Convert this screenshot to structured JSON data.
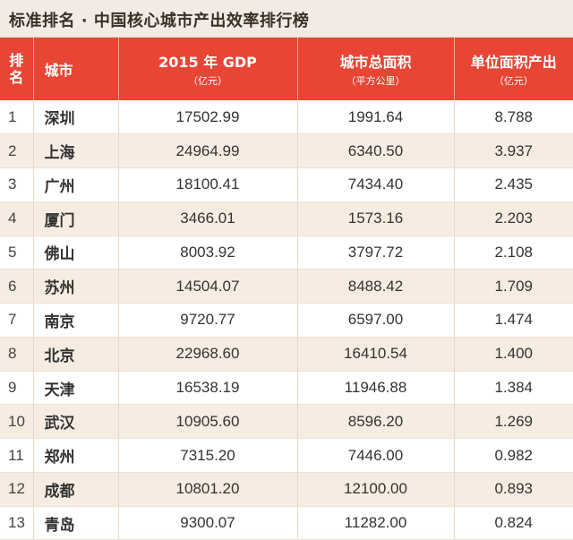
{
  "title": "标准排名 · 中国核心城市产出效率排行榜",
  "headers": {
    "rank_line1": "排",
    "rank_line2": "名",
    "city": "城市",
    "gdp": "2015 年 GDP",
    "gdp_unit": "（亿元）",
    "area": "城市总面积",
    "area_unit": "（平方公里）",
    "efficiency": "单位面积产出",
    "efficiency_unit": "（亿元）"
  },
  "rows": [
    {
      "rank": "1",
      "city": "深圳",
      "gdp": "17502.99",
      "area": "1991.64",
      "efficiency": "8.788"
    },
    {
      "rank": "2",
      "city": "上海",
      "gdp": "24964.99",
      "area": "6340.50",
      "efficiency": "3.937"
    },
    {
      "rank": "3",
      "city": "广州",
      "gdp": "18100.41",
      "area": "7434.40",
      "efficiency": "2.435"
    },
    {
      "rank": "4",
      "city": "厦门",
      "gdp": "3466.01",
      "area": "1573.16",
      "efficiency": "2.203"
    },
    {
      "rank": "5",
      "city": "佛山",
      "gdp": "8003.92",
      "area": "3797.72",
      "efficiency": "2.108"
    },
    {
      "rank": "6",
      "city": "苏州",
      "gdp": "14504.07",
      "area": "8488.42",
      "efficiency": "1.709"
    },
    {
      "rank": "7",
      "city": "南京",
      "gdp": "9720.77",
      "area": "6597.00",
      "efficiency": "1.474"
    },
    {
      "rank": "8",
      "city": "北京",
      "gdp": "22968.60",
      "area": "16410.54",
      "efficiency": "1.400"
    },
    {
      "rank": "9",
      "city": "天津",
      "gdp": "16538.19",
      "area": "11946.88",
      "efficiency": "1.384"
    },
    {
      "rank": "10",
      "city": "武汉",
      "gdp": "10905.60",
      "area": "8596.20",
      "efficiency": "1.269"
    },
    {
      "rank": "11",
      "city": "郑州",
      "gdp": "7315.20",
      "area": "7446.00",
      "efficiency": "0.982"
    },
    {
      "rank": "12",
      "city": "成都",
      "gdp": "10801.20",
      "area": "12100.00",
      "efficiency": "0.893"
    },
    {
      "rank": "13",
      "city": "青岛",
      "gdp": "9300.07",
      "area": "11282.00",
      "efficiency": "0.824"
    }
  ]
}
